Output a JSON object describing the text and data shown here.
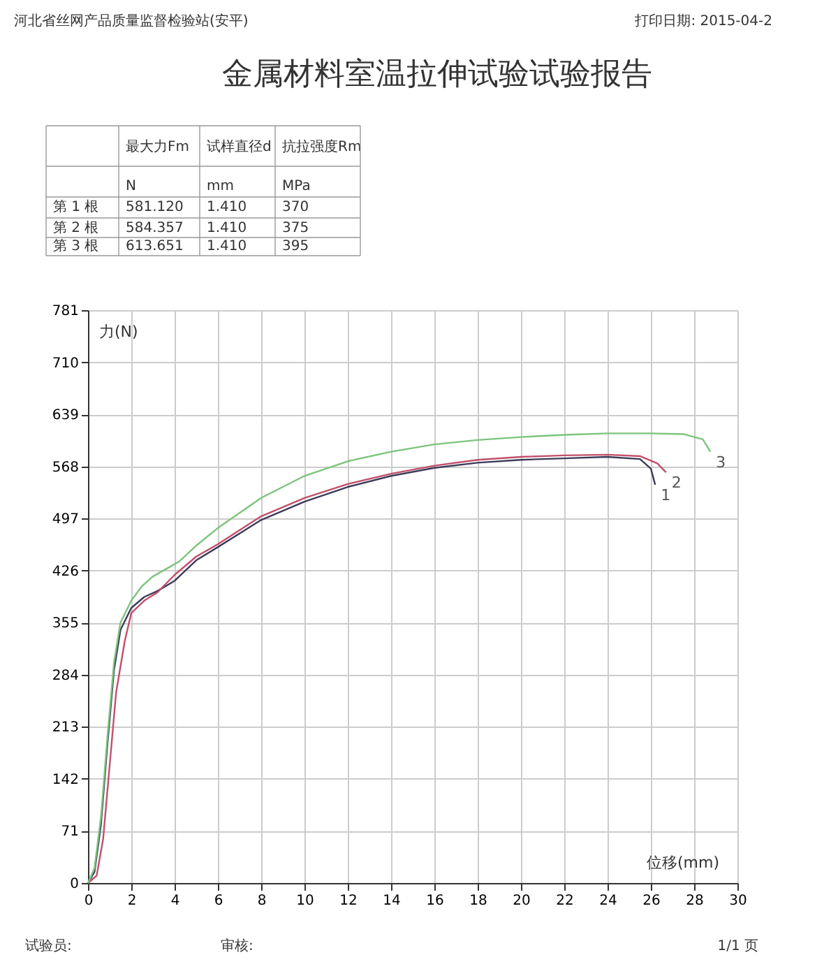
{
  "chart_data": {
    "type": "line",
    "title": "金属材料室温拉伸试验试验报告",
    "xlabel": "位移(mm)",
    "ylabel": "力(N)",
    "xlim": [
      0,
      30
    ],
    "xticks": [
      0,
      2,
      4,
      6,
      8,
      10,
      12,
      14,
      16,
      18,
      20,
      22,
      24,
      26,
      28,
      30
    ],
    "ylim": [
      0,
      781
    ],
    "yticks": [
      0,
      71,
      142,
      213,
      284,
      355,
      426,
      497,
      568,
      639,
      710,
      781
    ],
    "grid": true,
    "legend": false,
    "marker": "none",
    "line_style": "solid",
    "series": [
      {
        "name": "1",
        "color": "#3c3c5a",
        "x": [
          0,
          0.3,
          0.6,
          0.9,
          1.2,
          1.5,
          2.0,
          2.6,
          3.2,
          4.0,
          5.0,
          6.0,
          8,
          10,
          12,
          14,
          16,
          18,
          20,
          22,
          24,
          25.5,
          26.0,
          26.2
        ],
        "values": [
          0,
          15,
          80,
          190,
          290,
          345,
          375,
          390,
          398,
          412,
          440,
          458,
          495,
          520,
          540,
          555,
          566,
          573,
          577,
          579,
          581,
          578,
          565,
          543
        ]
      },
      {
        "name": "2",
        "color": "#c0506a",
        "x": [
          0,
          0.4,
          0.7,
          1.0,
          1.3,
          1.7,
          2.0,
          2.6,
          3.2,
          4,
          5,
          6,
          8,
          10,
          12,
          14,
          16,
          18,
          20,
          22,
          24,
          25.5,
          26.3,
          26.7
        ],
        "values": [
          0,
          10,
          60,
          160,
          260,
          330,
          368,
          385,
          396,
          420,
          445,
          462,
          500,
          525,
          544,
          558,
          569,
          577,
          581,
          583,
          584,
          582,
          572,
          560
        ]
      },
      {
        "name": "3",
        "color": "#7cc47c",
        "x": [
          0,
          0.3,
          0.6,
          0.9,
          1.2,
          1.5,
          2.0,
          2.5,
          3.0,
          3.6,
          4.2,
          5,
          6,
          8,
          10,
          12,
          14,
          16,
          18,
          20,
          22,
          24,
          26,
          27.5,
          28.4,
          28.75
        ],
        "values": [
          0,
          20,
          90,
          200,
          300,
          355,
          385,
          405,
          418,
          428,
          438,
          460,
          484,
          525,
          555,
          575,
          588,
          598,
          604,
          608,
          611,
          613,
          613,
          612,
          605,
          588
        ]
      }
    ],
    "annotations": [
      "河北省丝网产品质量监督检验站(安平)",
      "打印日期: 2015-04-2",
      "最大力Fm",
      "试样直径d",
      "抗拉强度Rm",
      "N",
      "mm",
      "MPa",
      "第 1 根",
      "581.120",
      "1.410",
      "370",
      "第 2 根",
      "584.357",
      "1.410",
      "375",
      "第 3 根",
      "613.651",
      "1.410",
      "395",
      "试验员:",
      "审核:",
      "1/1 页"
    ]
  }
}
